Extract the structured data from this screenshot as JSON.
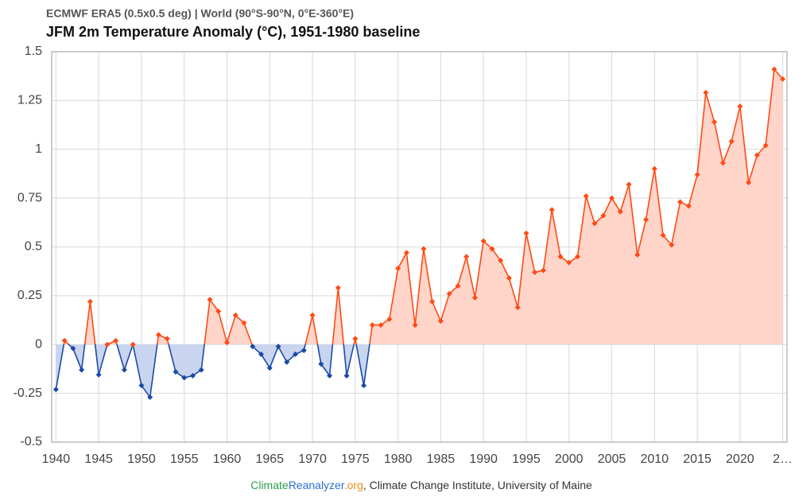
{
  "chart_data": {
    "type": "line",
    "subtitle": "ECMWF ERA5 (0.5x0.5 deg) | World (90°S-90°N, 0°E-360°E)",
    "title": "JFM 2m Temperature Anomaly (°C), 1951-1980 baseline",
    "source": [
      {
        "text": "Climate",
        "color": "#2e9e4f"
      },
      {
        "text": "Reanalyzer",
        "color": "#2a6fd0"
      },
      {
        "text": ".org",
        "color": "#f08a1c"
      },
      {
        "text": ", Climate Change Institute, University of Maine",
        "color": "#333333"
      }
    ],
    "x": [
      1940,
      1941,
      1942,
      1943,
      1944,
      1945,
      1946,
      1947,
      1948,
      1949,
      1950,
      1951,
      1952,
      1953,
      1954,
      1955,
      1956,
      1957,
      1958,
      1959,
      1960,
      1961,
      1962,
      1963,
      1964,
      1965,
      1966,
      1967,
      1968,
      1969,
      1970,
      1971,
      1972,
      1973,
      1974,
      1975,
      1976,
      1977,
      1978,
      1979,
      1980,
      1981,
      1982,
      1983,
      1984,
      1985,
      1986,
      1987,
      1988,
      1989,
      1990,
      1991,
      1992,
      1993,
      1994,
      1995,
      1996,
      1997,
      1998,
      1999,
      2000,
      2001,
      2002,
      2003,
      2004,
      2005,
      2006,
      2007,
      2008,
      2009,
      2010,
      2011,
      2012,
      2013,
      2014,
      2015,
      2016,
      2017,
      2018,
      2019,
      2020,
      2021,
      2022,
      2023,
      2024,
      2025
    ],
    "values": [
      -0.23,
      0.02,
      -0.02,
      -0.13,
      0.22,
      -0.155,
      0.0,
      0.02,
      -0.13,
      0.0,
      -0.21,
      -0.27,
      0.05,
      0.03,
      -0.14,
      -0.17,
      -0.16,
      -0.13,
      0.23,
      0.17,
      0.01,
      0.15,
      0.11,
      -0.01,
      -0.05,
      -0.12,
      -0.01,
      -0.09,
      -0.05,
      -0.03,
      0.15,
      -0.1,
      -0.16,
      0.29,
      -0.16,
      0.03,
      -0.21,
      0.1,
      0.1,
      0.13,
      0.39,
      0.47,
      0.1,
      0.49,
      0.22,
      0.12,
      0.26,
      0.3,
      0.45,
      0.24,
      0.53,
      0.49,
      0.43,
      0.34,
      0.19,
      0.57,
      0.37,
      0.38,
      0.69,
      0.45,
      0.42,
      0.45,
      0.76,
      0.62,
      0.66,
      0.75,
      0.68,
      0.82,
      0.46,
      0.64,
      0.9,
      0.56,
      0.51,
      0.73,
      0.71,
      0.87,
      1.29,
      1.14,
      0.93,
      1.04,
      1.22,
      0.83,
      0.97,
      1.02,
      1.41,
      1.36
    ],
    "positive_color": "#ff4a14",
    "negative_color": "#1a4aa8",
    "positive_fill": "#ffd5ca",
    "negative_fill": "#c9d5ee",
    "xlim": [
      1939.5,
      2025.5
    ],
    "ylim": [
      -0.5,
      1.5
    ],
    "xticks": [
      1940,
      1945,
      1950,
      1955,
      1960,
      1965,
      1970,
      1975,
      1980,
      1985,
      1990,
      1995,
      2000,
      2005,
      2010,
      2015,
      2020,
      {
        "value": 2025,
        "label": "2…"
      }
    ],
    "yticks": [
      -0.5,
      -0.25,
      0,
      0.25,
      0.5,
      0.75,
      1,
      1.25,
      1.5
    ],
    "grid": true
  }
}
